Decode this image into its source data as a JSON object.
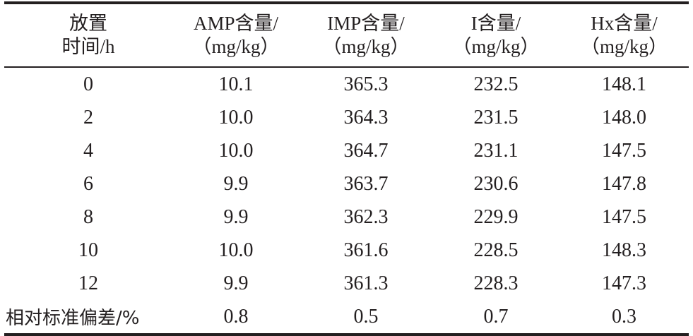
{
  "table": {
    "headers": [
      [
        "放置",
        "时间/h"
      ],
      [
        "AMP含量/",
        "（mg/kg）"
      ],
      [
        "IMP含量/",
        "（mg/kg）"
      ],
      [
        "I含量/",
        "（mg/kg）"
      ],
      [
        "Hx含量/",
        "（mg/kg）"
      ]
    ],
    "rows": [
      [
        "0",
        "10.1",
        "365.3",
        "232.5",
        "148.1"
      ],
      [
        "2",
        "10.0",
        "364.3",
        "231.5",
        "148.0"
      ],
      [
        "4",
        "10.0",
        "364.7",
        "231.1",
        "147.5"
      ],
      [
        "6",
        "9.9",
        "363.7",
        "230.6",
        "147.8"
      ],
      [
        "8",
        "9.9",
        "362.3",
        "229.9",
        "147.5"
      ],
      [
        "10",
        "10.0",
        "361.6",
        "228.5",
        "148.3"
      ],
      [
        "12",
        "9.9",
        "361.3",
        "228.3",
        "147.3"
      ]
    ],
    "rsd_row": [
      "相对标准偏差/%",
      "0.8",
      "0.5",
      "0.7",
      "0.3"
    ]
  }
}
